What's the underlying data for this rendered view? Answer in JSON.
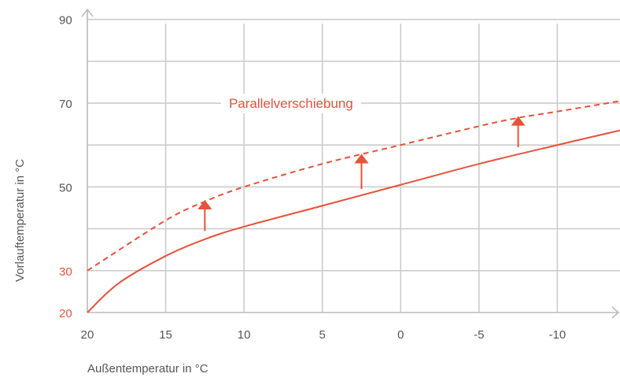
{
  "chart_data": {
    "type": "line",
    "xlabel": "Außentemperatur in °C",
    "ylabel": "Vorlauftemperatur in °C",
    "xlim": [
      20,
      -14
    ],
    "ylim": [
      20,
      92
    ],
    "x_ticks": [
      "20",
      "15",
      "10",
      "5",
      "0",
      "-5",
      "-10"
    ],
    "y_ticks": [
      {
        "value": 90,
        "label": "90",
        "accent": false
      },
      {
        "value": 70,
        "label": "70",
        "accent": false
      },
      {
        "value": 50,
        "label": "50",
        "accent": false
      },
      {
        "value": 30,
        "label": "30",
        "accent": true
      },
      {
        "value": 20,
        "label": "20",
        "accent": true
      }
    ],
    "grid": true,
    "series": [
      {
        "style": "solid",
        "x": [
          20,
          18,
          15,
          12.5,
          10,
          5,
          0,
          -5,
          -10,
          -14
        ],
        "y": [
          20,
          27,
          33.5,
          37.5,
          40.5,
          45.5,
          50.5,
          55.5,
          60,
          63.5
        ]
      },
      {
        "style": "dashed",
        "x": [
          20,
          15,
          12.5,
          10,
          5,
          0,
          -5,
          -7.5,
          -10,
          -14
        ],
        "y": [
          30,
          42,
          46.5,
          50,
          55.5,
          60,
          64.5,
          66.5,
          68,
          70.5
        ]
      }
    ],
    "annotations": [
      {
        "text": "Parallelverschiebung",
        "x": 7,
        "y": 70
      }
    ],
    "arrows": [
      {
        "x": 12.5,
        "from": 39.5,
        "to": 46.5
      },
      {
        "x": 2.5,
        "from": 49.5,
        "to": 57.5
      },
      {
        "x": -7.5,
        "from": 59.5,
        "to": 66.5
      }
    ],
    "colors": {
      "curve": "#e8513a",
      "grid": "#cccccc",
      "axis": "#bbbbbb",
      "text": "#555555"
    }
  }
}
